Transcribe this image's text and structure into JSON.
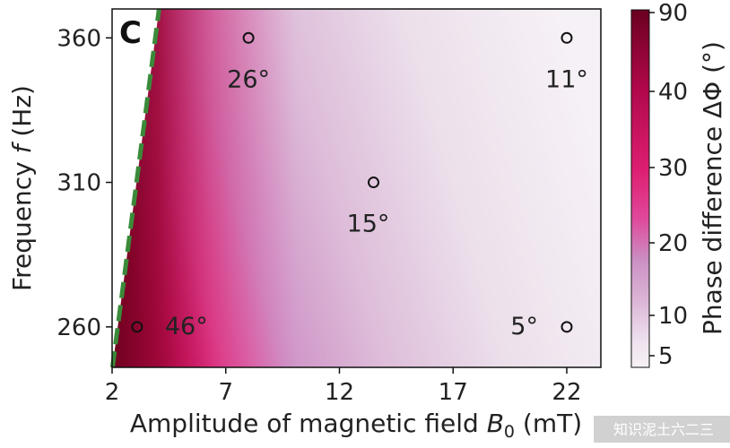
{
  "chart_data": {
    "type": "heatmap",
    "panel_label": "C",
    "xlabel": "Amplitude of magnetic field ",
    "xlabel_symbol": "B",
    "xlabel_subscript": "0",
    "xlabel_unit": " (mT)",
    "ylabel": "Frequency ",
    "ylabel_symbol": "f",
    "ylabel_unit": " (Hz)",
    "xlim": [
      2,
      23.5
    ],
    "ylim": [
      246,
      370
    ],
    "xticks": [
      2,
      7,
      12,
      17,
      22
    ],
    "yticks": [
      260,
      310,
      360
    ],
    "colorbar": {
      "label": "Phase difference ΔΦ (°)",
      "range": [
        4,
        90
      ],
      "ticks": [
        5,
        10,
        20,
        30,
        40,
        90
      ],
      "tick_labels": [
        "5",
        "10",
        "20",
        "30",
        "40",
        "90"
      ],
      "low_color": "#f7f1f6",
      "mid_color": "#c67fbb",
      "high_color": "#e0217a",
      "max_color": "#7d0029"
    },
    "boundary_line": {
      "style": "dashed",
      "color": "#3a8a3a",
      "points": [
        {
          "x": 2.05,
          "y": 248
        },
        {
          "x": 4.0,
          "y": 366
        }
      ]
    },
    "points": [
      {
        "x": 3.1,
        "y": 260,
        "label": "46°"
      },
      {
        "x": 8.0,
        "y": 360,
        "label": "26°"
      },
      {
        "x": 13.5,
        "y": 310,
        "label": "15°"
      },
      {
        "x": 22.0,
        "y": 360,
        "label": "11°"
      },
      {
        "x": 22.0,
        "y": 260,
        "label": "5°"
      }
    ]
  },
  "watermark": "知识泥土六二三"
}
